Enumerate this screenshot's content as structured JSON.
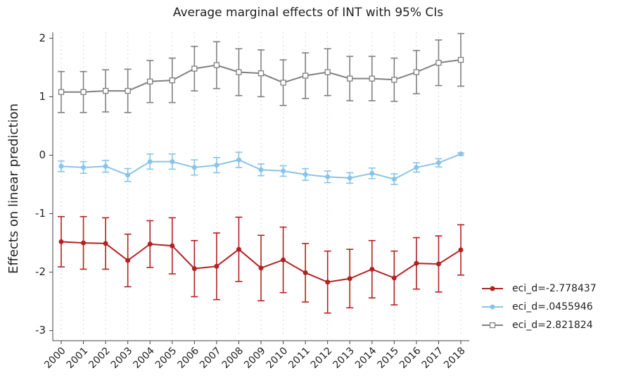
{
  "chart_data": {
    "type": "line",
    "title": "Average marginal effects of INT with 95% CIs",
    "y_label": "Effects on linear prediction",
    "categories": [
      "2000",
      "2001",
      "2002",
      "2003",
      "2004",
      "2005",
      "2006",
      "2007",
      "2008",
      "2009",
      "2010",
      "2011",
      "2012",
      "2013",
      "2014",
      "2015",
      "2016",
      "2017",
      "2018"
    ],
    "ylim": [
      -3.1,
      2.1
    ],
    "yticks": [
      -3,
      -2,
      -1,
      0,
      1,
      2
    ],
    "grid": true,
    "legend": "right",
    "series": [
      {
        "name": "eci_d=-2.778437",
        "color": "#b22222",
        "marker": "circle",
        "values": [
          -1.48,
          -1.5,
          -1.51,
          -1.8,
          -1.52,
          -1.55,
          -1.94,
          -1.9,
          -1.61,
          -1.93,
          -1.79,
          -2.01,
          -2.17,
          -2.11,
          -1.95,
          -2.1,
          -1.85,
          -1.86,
          -1.62
        ],
        "errors": [
          0.43,
          0.45,
          0.44,
          0.45,
          0.4,
          0.48,
          0.48,
          0.57,
          0.55,
          0.56,
          0.56,
          0.5,
          0.53,
          0.5,
          0.49,
          0.46,
          0.44,
          0.48,
          0.43
        ]
      },
      {
        "name": "eci_d=.0455946",
        "color": "#89c4e8",
        "marker": "circle",
        "values": [
          -0.19,
          -0.21,
          -0.19,
          -0.34,
          -0.11,
          -0.11,
          -0.21,
          -0.17,
          -0.08,
          -0.25,
          -0.27,
          -0.33,
          -0.37,
          -0.39,
          -0.31,
          -0.41,
          -0.21,
          -0.13,
          0.02
        ],
        "errors": [
          0.09,
          0.1,
          0.1,
          0.11,
          0.13,
          0.13,
          0.13,
          0.13,
          0.13,
          0.1,
          0.09,
          0.1,
          0.1,
          0.09,
          0.09,
          0.09,
          0.08,
          0.07,
          0.02
        ]
      },
      {
        "name": "eci_d=2.821824",
        "color": "#808080",
        "marker": "square",
        "values": [
          1.08,
          1.08,
          1.1,
          1.1,
          1.26,
          1.28,
          1.48,
          1.54,
          1.42,
          1.4,
          1.24,
          1.36,
          1.42,
          1.31,
          1.31,
          1.29,
          1.42,
          1.58,
          1.63
        ],
        "errors": [
          0.35,
          0.35,
          0.36,
          0.37,
          0.36,
          0.38,
          0.38,
          0.4,
          0.4,
          0.4,
          0.39,
          0.39,
          0.4,
          0.38,
          0.38,
          0.37,
          0.37,
          0.39,
          0.45
        ]
      }
    ]
  }
}
